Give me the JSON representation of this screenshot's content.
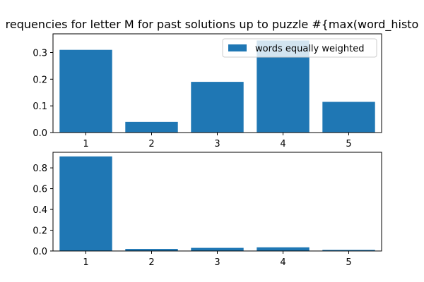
{
  "title": "requencies for letter M for past solutions up to puzzle #{max(word_histo",
  "bar_color": "#1f77b4",
  "chart_data": [
    {
      "type": "bar",
      "categories": [
        "1",
        "2",
        "3",
        "4",
        "5"
      ],
      "values": [
        0.31,
        0.04,
        0.19,
        0.345,
        0.115
      ],
      "ylim": [
        0,
        0.37
      ],
      "yticks": [
        "0.0",
        "0.1",
        "0.2",
        "0.3"
      ],
      "legend": {
        "label": "words equally weighted",
        "position": "top-right"
      }
    },
    {
      "type": "bar",
      "categories": [
        "1",
        "2",
        "3",
        "4",
        "5"
      ],
      "values": [
        0.91,
        0.02,
        0.03,
        0.035,
        0.01
      ],
      "ylim": [
        0,
        0.95
      ],
      "yticks": [
        "0.0",
        "0.2",
        "0.4",
        "0.6",
        "0.8"
      ]
    }
  ]
}
